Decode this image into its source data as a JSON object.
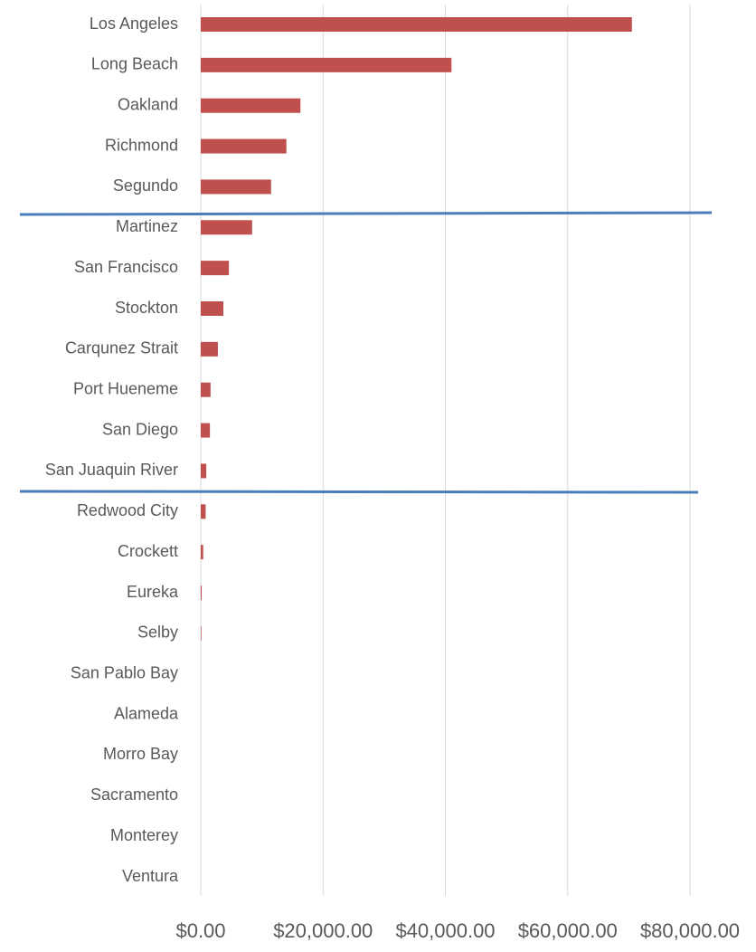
{
  "chart_data": {
    "type": "barh",
    "categories": [
      "Los Angeles",
      "Long Beach",
      "Oakland",
      "Richmond",
      "Segundo",
      "Martinez",
      "San Francisco",
      "Stockton",
      "Carqunez Strait",
      "Port Hueneme",
      "San Diego",
      "San Juaquin River",
      "Redwood City",
      "Crockett",
      "Eureka",
      "Selby",
      "San Pablo Bay",
      "Alameda",
      "Morro Bay",
      "Sacramento",
      "Monterey",
      "Ventura"
    ],
    "values": [
      70500,
      41000,
      16300,
      14000,
      11500,
      8400,
      4600,
      3700,
      2800,
      1600,
      1500,
      900,
      800,
      400,
      150,
      100,
      0,
      0,
      0,
      0,
      0,
      0
    ],
    "color": "#c0504d",
    "xlim": [
      0,
      80000
    ],
    "xticks": [
      {
        "value": 0,
        "label": "$0.00"
      },
      {
        "value": 20000,
        "label": "$20,000.00"
      },
      {
        "value": 40000,
        "label": "$40,000.00"
      },
      {
        "value": 60000,
        "label": "$60,000.00"
      },
      {
        "value": 80000,
        "label": "$80,000.00"
      }
    ],
    "grid": true
  }
}
